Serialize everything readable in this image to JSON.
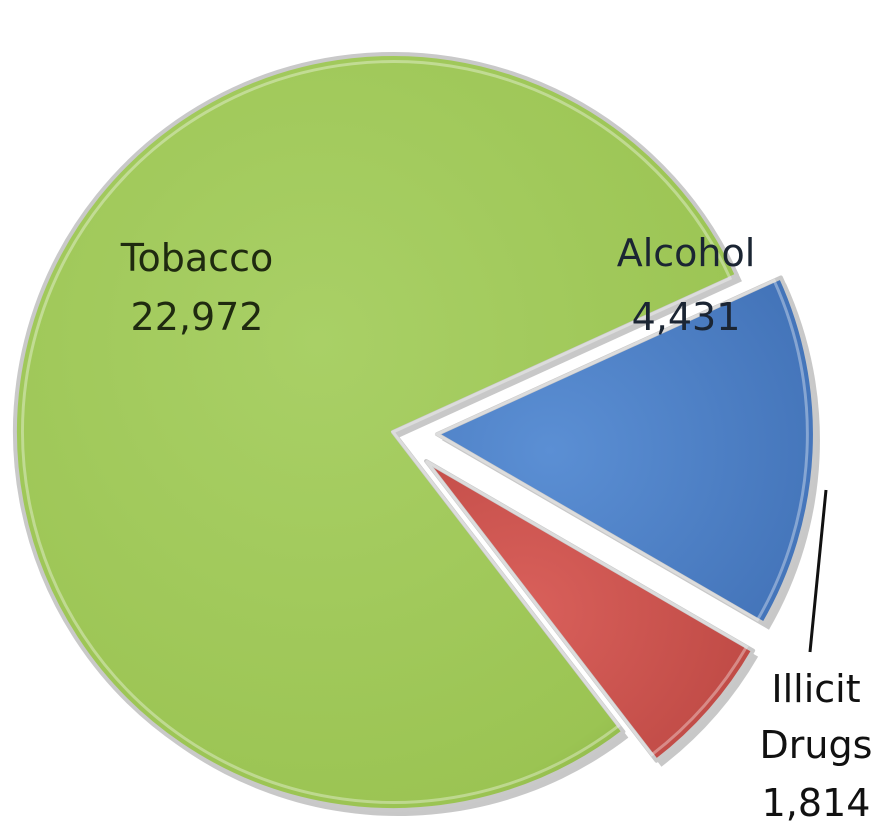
{
  "chart_data": {
    "type": "pie",
    "title": "",
    "slices": [
      {
        "label": "Alcohol",
        "value": 4431,
        "value_text": "4,431",
        "color": "#4f81c7"
      },
      {
        "label": "Illicit Drugs",
        "value": 1814,
        "value_text": "1,814",
        "color": "#cd5450"
      },
      {
        "label": "Tobacco",
        "value": 22972,
        "value_text": "22,972",
        "color": "#9bc453"
      }
    ],
    "legend": "none",
    "exploded": [
      "Alcohol",
      "Illicit Drugs"
    ]
  }
}
